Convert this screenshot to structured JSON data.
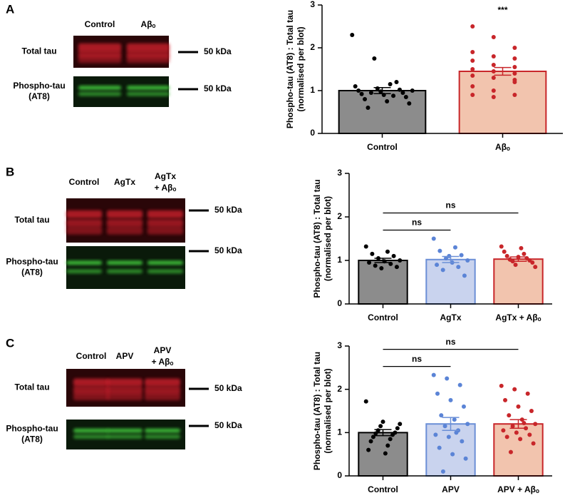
{
  "panels": [
    "A",
    "B",
    "C"
  ],
  "blots": [
    {
      "lanes": [
        [
          "Control"
        ],
        [
          "Aβₒ"
        ]
      ],
      "rows": [
        {
          "label": [
            "Total tau"
          ],
          "marker": "50 kDa"
        },
        {
          "label": [
            "Phospho-tau",
            "(AT8)"
          ],
          "marker": "50 kDa"
        }
      ]
    },
    {
      "lanes": [
        [
          "Control"
        ],
        [
          "AgTx"
        ],
        [
          "AgTx",
          "+ Aβₒ"
        ]
      ],
      "rows": [
        {
          "label": [
            "Total tau"
          ],
          "marker": "50 kDa"
        },
        {
          "label": [
            "Phospho-tau",
            "(AT8)"
          ],
          "marker": "50 kDa"
        }
      ]
    },
    {
      "lanes": [
        [
          "Control"
        ],
        [
          "APV"
        ],
        [
          "APV",
          "+ Aβₒ"
        ]
      ],
      "rows": [
        {
          "label": [
            "Total tau"
          ],
          "marker": "50 kDa"
        },
        {
          "label": [
            "Phospho-tau",
            "(AT8)"
          ],
          "marker": "50 kDa"
        }
      ]
    }
  ],
  "chart_data": [
    {
      "type": "bar",
      "ylabel": [
        "Phospho-tau (AT8) : Total tau",
        "(normalised per blot)"
      ],
      "categories": [
        "Control",
        "Aβₒ"
      ],
      "values": [
        1.0,
        1.45
      ],
      "errors": [
        0.07,
        0.09
      ],
      "colors": [
        "#8c8c8c",
        "#f2c4ae"
      ],
      "edge_colors": [
        "#000000",
        "#c8262a"
      ],
      "point_colors": [
        "#000000",
        "#c8262a"
      ],
      "points": [
        [
          2.3,
          1.75,
          1.2,
          1.1,
          1.05,
          1.02,
          1.0,
          0.98,
          0.95,
          0.92,
          0.9,
          0.85,
          0.8,
          0.75,
          0.7,
          0.6,
          1.15,
          1.0,
          0.95,
          0.88
        ],
        [
          2.5,
          2.25,
          2.0,
          1.9,
          1.8,
          1.75,
          1.7,
          1.6,
          1.55,
          1.5,
          1.45,
          1.4,
          1.35,
          1.3,
          1.2,
          1.1,
          1.0,
          0.9,
          0.9,
          0.85,
          1.25
        ]
      ],
      "annotations": [
        {
          "text": "***",
          "from": 1,
          "to": 1
        }
      ],
      "ylim": [
        0,
        3
      ],
      "yticks": [
        0,
        1,
        2,
        3
      ]
    },
    {
      "type": "bar",
      "ylabel": [
        "Phospho-tau (AT8) : Total tau",
        "(normalised per blot)"
      ],
      "categories": [
        "Control",
        "AgTx",
        "AgTx + Aβₒ"
      ],
      "values": [
        1.0,
        1.02,
        1.03
      ],
      "errors": [
        0.05,
        0.07,
        0.05
      ],
      "colors": [
        "#8c8c8c",
        "#c9d3ee",
        "#f2c4ae"
      ],
      "edge_colors": [
        "#000000",
        "#6b8fd6",
        "#c8262a"
      ],
      "point_colors": [
        "#000000",
        "#5b84d6",
        "#c8262a"
      ],
      "points": [
        [
          1.32,
          1.2,
          1.15,
          1.1,
          1.05,
          1.0,
          0.98,
          0.95,
          0.92,
          0.88,
          0.85,
          0.82
        ],
        [
          1.5,
          1.3,
          1.22,
          1.12,
          1.05,
          1.0,
          0.95,
          0.9,
          0.85,
          0.78,
          0.65,
          1.1
        ],
        [
          1.32,
          1.28,
          1.2,
          1.15,
          1.1,
          1.05,
          1.02,
          1.0,
          0.98,
          0.95,
          0.9,
          0.85,
          1.08
        ]
      ],
      "annotations": [
        {
          "text": "ns",
          "from": 0,
          "to": 1
        },
        {
          "text": "ns",
          "from": 0,
          "to": 2
        }
      ],
      "ylim": [
        0,
        3
      ],
      "yticks": [
        0,
        1,
        2,
        3
      ]
    },
    {
      "type": "bar",
      "ylabel": [
        "Phospho-tau (AT8) : Total tau",
        "(normalised per blot)"
      ],
      "categories": [
        "Control",
        "APV",
        "APV + Aβₒ"
      ],
      "values": [
        1.0,
        1.2,
        1.2
      ],
      "errors": [
        0.07,
        0.15,
        0.1
      ],
      "colors": [
        "#8c8c8c",
        "#c9d3ee",
        "#f2c4ae"
      ],
      "edge_colors": [
        "#000000",
        "#6b8fd6",
        "#c8262a"
      ],
      "point_colors": [
        "#000000",
        "#5b84d6",
        "#c8262a"
      ],
      "points": [
        [
          1.72,
          1.25,
          1.2,
          1.15,
          1.1,
          1.05,
          1.0,
          0.98,
          0.95,
          0.9,
          0.85,
          0.8,
          0.7,
          0.6,
          0.52
        ],
        [
          2.33,
          2.25,
          2.1,
          1.9,
          1.75,
          1.6,
          1.4,
          1.3,
          1.2,
          1.15,
          1.05,
          0.95,
          0.9,
          0.8,
          0.65,
          0.5,
          0.4,
          0.1,
          1.0
        ],
        [
          2.08,
          2.0,
          1.9,
          1.75,
          1.6,
          1.5,
          1.4,
          1.3,
          1.2,
          1.15,
          1.1,
          1.05,
          1.0,
          0.95,
          0.9,
          0.85,
          0.75,
          0.55,
          1.22
        ]
      ],
      "annotations": [
        {
          "text": "ns",
          "from": 0,
          "to": 1
        },
        {
          "text": "ns",
          "from": 0,
          "to": 2
        }
      ],
      "ylim": [
        0,
        3
      ],
      "yticks": [
        0,
        1,
        2,
        3
      ]
    }
  ]
}
